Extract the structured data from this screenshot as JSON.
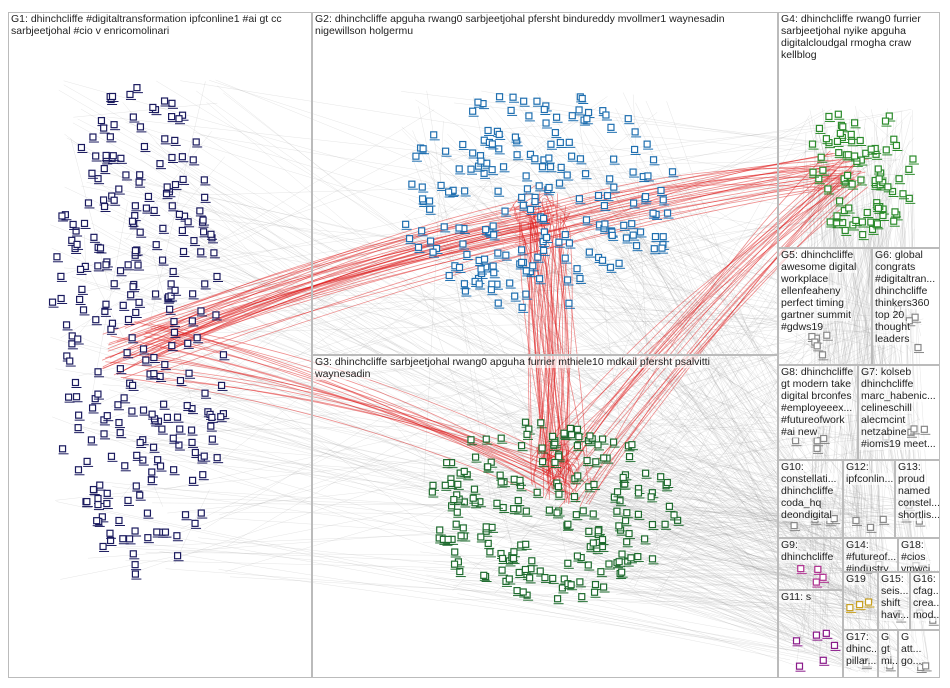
{
  "groups": [
    {
      "label": [
        "G1: dhinchcliffe #digitaltransformation ipfconline1 #ai gt cc",
        "sarbjeetjohal #cio v enricomolinari"
      ]
    },
    {
      "label": [
        "G2: dhinchcliffe apguha rwang0 sarbjeetjohal pfersht bindureddy mvollmer1 waynesadin",
        "nigewillson holgermu"
      ]
    },
    {
      "label": [
        "G3: dhinchcliffe sarbjeetjohal rwang0 apguha furrier mthiele10 mdkail pfersht psalvitti",
        "waynesadin"
      ]
    },
    {
      "label": [
        "G4: dhinchcliffe rwang0 furrier",
        "sarbjeetjohal nyike apguha",
        "digitalcloudgal rmogha craw",
        "kellblog"
      ]
    },
    {
      "label": [
        "G5: dhinchcliffe",
        "awesome digital",
        "workplace",
        "ellenfeaheny",
        "perfect timing",
        "gartner summit",
        "#gdws19"
      ]
    },
    {
      "label": [
        "G6: global",
        "congrats",
        "#digitaltran...",
        "dhinchcliffe",
        "thinkers360",
        "top 20",
        "thought",
        "leaders"
      ]
    },
    {
      "label": [
        "G8: dhinchcliffe",
        "gt modern take",
        "digital brconfes",
        "#employeeex...",
        "#futureofwork",
        "#ai new"
      ]
    },
    {
      "label": [
        "G7: kolseb",
        "dhinchcliffe",
        "marc_habenic...",
        "celineschill",
        "alecmcint",
        "netzabine",
        "#ioms19 meet..."
      ]
    },
    {
      "label": [
        "G10:",
        "constellati...",
        "dhinchcliffe",
        "coda_hq",
        "deondigital"
      ]
    },
    {
      "label": [
        "G12:",
        "ipfconlin..."
      ]
    },
    {
      "label": [
        "G13:",
        "proud",
        "named",
        "constel...",
        "shortlis..."
      ]
    },
    {
      "label": [
        "G9:",
        "dhinchcliffe"
      ]
    },
    {
      "label": [
        "G14:",
        "#futureof...",
        "#industry..."
      ]
    },
    {
      "label": [
        "G18:",
        "#cios",
        "vmwci..."
      ]
    },
    {
      "label": [
        "G19"
      ]
    },
    {
      "label": [
        "G15:",
        "seis...",
        "shift",
        "havi..."
      ]
    },
    {
      "label": [
        "G16:",
        "cfag...",
        "crea...",
        "mod..."
      ]
    },
    {
      "label": [
        "G11: s"
      ]
    },
    {
      "label": [
        "G17:",
        "dhinc...",
        "pillar..."
      ]
    },
    {
      "label": [
        "G",
        "gt",
        "mi..."
      ]
    },
    {
      "label": [
        "G",
        "att...",
        "go..."
      ]
    }
  ]
}
